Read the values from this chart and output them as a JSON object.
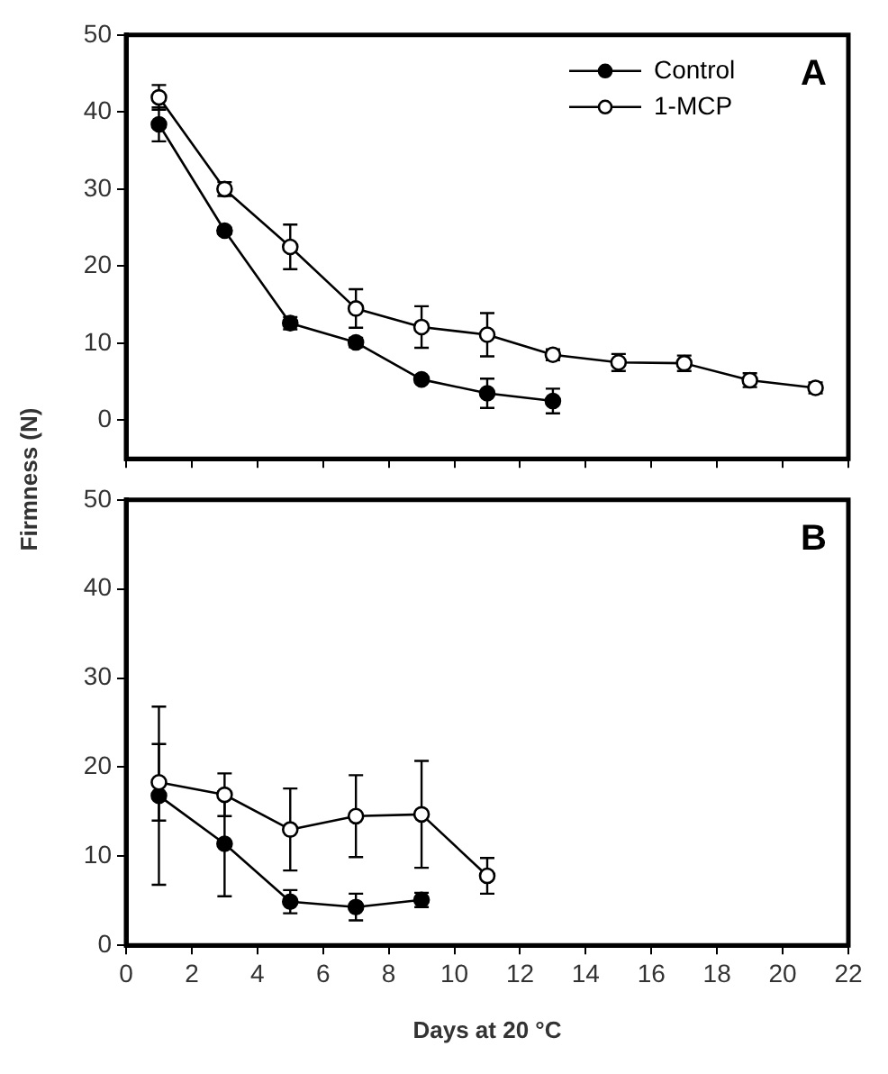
{
  "chart_data": [
    {
      "type": "line",
      "ylabel": "Firmness (N)",
      "annotations": [
        "A"
      ],
      "xlim": [
        0,
        22
      ],
      "xticks": [
        0,
        2,
        4,
        6,
        8,
        10,
        12,
        14,
        16,
        18,
        20,
        22
      ],
      "ylim": [
        -5,
        50
      ],
      "yticks": [
        0,
        10,
        20,
        30,
        40,
        50
      ],
      "tick_labels": "y",
      "legend": "top right",
      "marker": "circle",
      "line_style": "solid",
      "grid": false,
      "series": [
        {
          "name": "Control",
          "color": "#000000",
          "x": [
            1,
            3,
            5,
            7,
            9,
            11,
            13
          ],
          "values": [
            38.4,
            24.6,
            12.6,
            10.1,
            5.3,
            3.5,
            2.5
          ],
          "errors": [
            2.2,
            0.4,
            0.8,
            0.6,
            0.4,
            1.9,
            1.6
          ]
        },
        {
          "name": "1-MCP",
          "color": "#000000",
          "x": [
            1,
            3,
            5,
            7,
            9,
            11,
            13,
            15,
            17,
            19,
            21
          ],
          "values": [
            41.9,
            30.0,
            22.5,
            14.5,
            12.1,
            11.1,
            8.5,
            7.5,
            7.4,
            5.2,
            4.2
          ],
          "errors": [
            1.6,
            0.9,
            2.9,
            2.5,
            2.7,
            2.8,
            0.7,
            1.1,
            1.0,
            0.9,
            0.7
          ]
        }
      ]
    },
    {
      "type": "line",
      "xlabel": "Days at 20 °C",
      "annotations": [
        "B"
      ],
      "xlim": [
        0,
        22
      ],
      "xticks": [
        0,
        2,
        4,
        6,
        8,
        10,
        12,
        14,
        16,
        18,
        20,
        22
      ],
      "ylim": [
        0,
        50
      ],
      "yticks": [
        0,
        10,
        20,
        30,
        40,
        50
      ],
      "marker": "circle",
      "line_style": "solid",
      "grid": false,
      "series": [
        {
          "color": "#000000",
          "x": [
            1,
            3,
            5,
            7,
            9
          ],
          "values": [
            16.8,
            11.4,
            4.9,
            4.3,
            5.1
          ],
          "errors": [
            10.0,
            5.9,
            1.3,
            1.5,
            0.8
          ]
        },
        {
          "color": "#000000",
          "x": [
            1,
            3,
            5,
            7,
            9,
            11
          ],
          "values": [
            18.3,
            16.9,
            13.0,
            14.5,
            14.7,
            7.8
          ],
          "errors": [
            4.3,
            2.4,
            4.6,
            4.6,
            6.0,
            2.0
          ]
        }
      ]
    }
  ]
}
